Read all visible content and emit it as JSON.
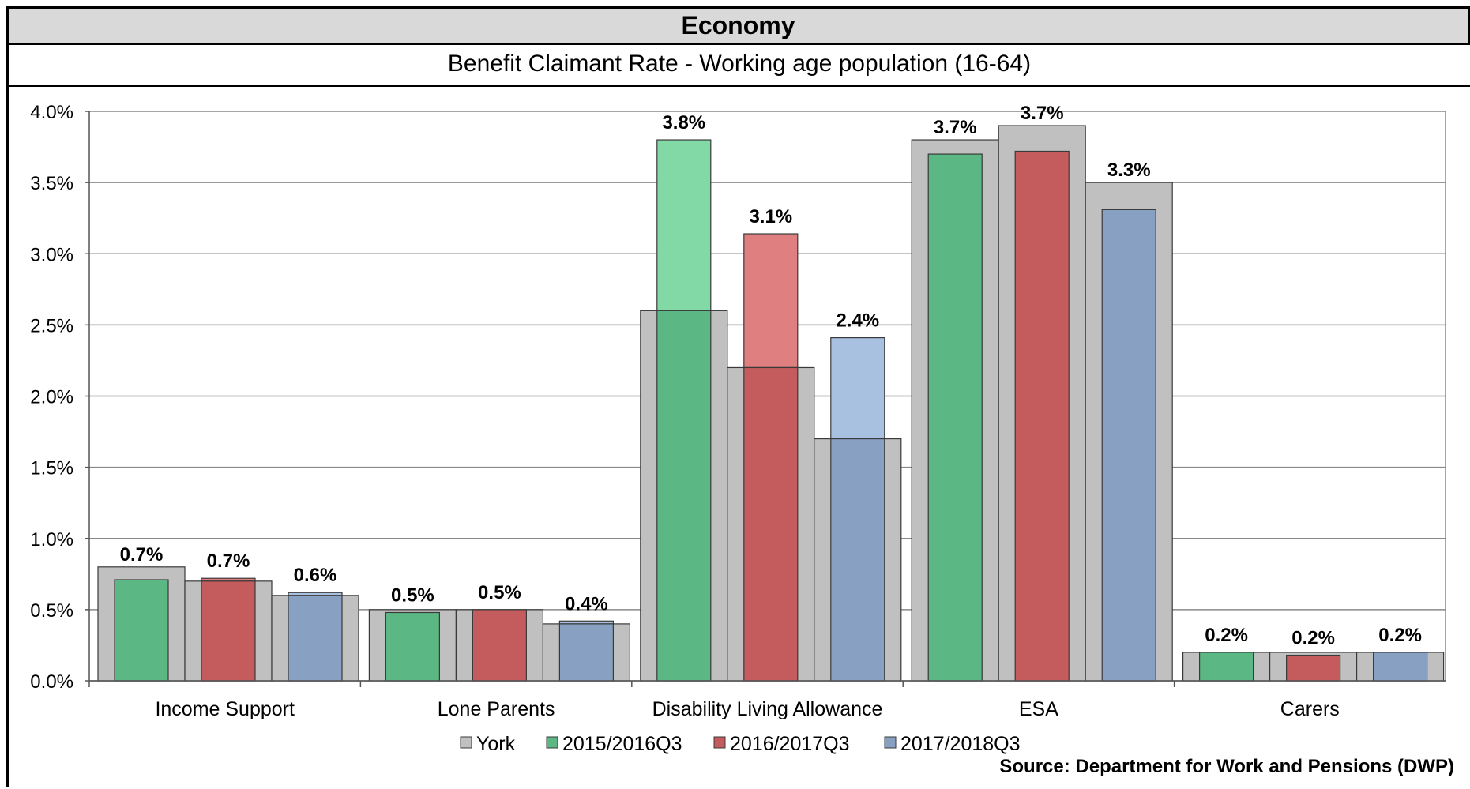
{
  "header": {
    "title": "Economy",
    "subtitle": "Benefit Claimant Rate - Working age population (16-64)"
  },
  "source": "Source: Department for Work and Pensions (DWP)",
  "colors": {
    "York": "#c0c0c0",
    "2015/2016Q3": "#5bb783",
    "2016/2017Q3": "#c45c5e",
    "2017/2018Q3": "#88a1c2",
    "2015/2016Q3_light": "#82d9a6",
    "2016/2017Q3_light": "#df7f7f",
    "2017/2018Q3_light": "#a9c1e0",
    "grid": "#888888",
    "edge": "#3a3a3a"
  },
  "chart_data": {
    "type": "bar",
    "categories": [
      "Income Support",
      "Lone Parents",
      "Disability Living Allowance",
      "ESA",
      "Carers"
    ],
    "ylim": [
      0,
      4.0
    ],
    "yticks": [
      "0.0%",
      "0.5%",
      "1.0%",
      "1.5%",
      "2.0%",
      "2.5%",
      "3.0%",
      "3.5%",
      "4.0%"
    ],
    "grid": true,
    "legend_position": "bottom",
    "york_values": [
      [
        0.8,
        0.7,
        0.6
      ],
      [
        0.5,
        0.5,
        0.4
      ],
      [
        2.6,
        2.2,
        1.7
      ],
      [
        3.8,
        3.9,
        3.5
      ],
      [
        0.2,
        0.2,
        0.2
      ]
    ],
    "series": [
      {
        "name": "2015/2016Q3",
        "values": [
          0.71,
          0.48,
          3.8,
          3.7,
          0.2
        ],
        "labels": [
          "0.7%",
          "0.5%",
          "3.8%",
          "3.7%",
          "0.2%"
        ]
      },
      {
        "name": "2016/2017Q3",
        "values": [
          0.72,
          0.5,
          3.14,
          3.72,
          0.18
        ],
        "labels": [
          "0.7%",
          "0.5%",
          "3.1%",
          "3.7%",
          "0.2%"
        ]
      },
      {
        "name": "2017/2018Q3",
        "values": [
          0.62,
          0.42,
          2.41,
          3.31,
          0.2
        ],
        "labels": [
          "0.6%",
          "0.4%",
          "2.4%",
          "3.3%",
          "0.2%"
        ]
      }
    ],
    "legend": [
      "York",
      "2015/2016Q3",
      "2016/2017Q3",
      "2017/2018Q3"
    ]
  }
}
